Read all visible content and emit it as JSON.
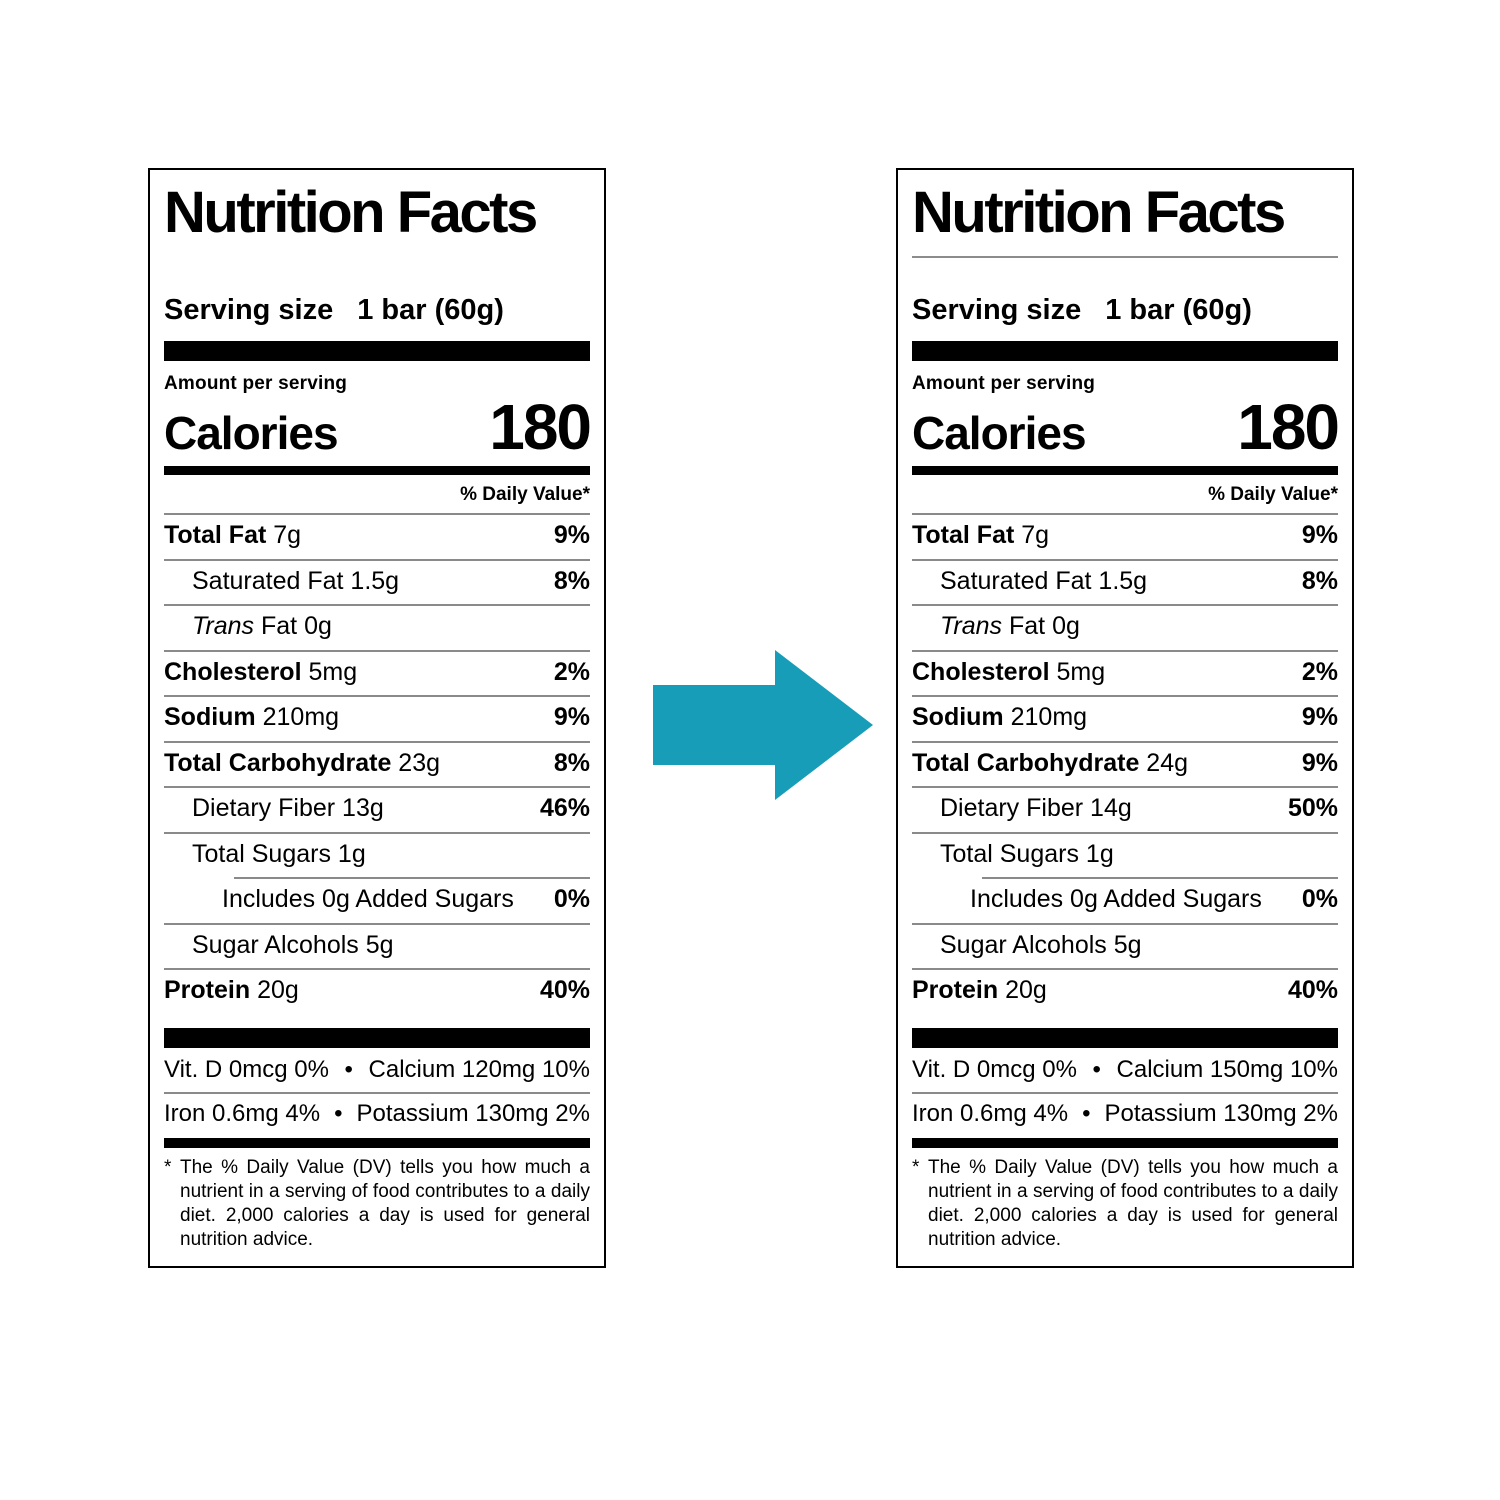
{
  "arrow": {
    "color": "#189db8"
  },
  "labels": [
    {
      "id": "before",
      "title": "Nutrition Facts",
      "title_rule": false,
      "serving_label": "Serving size",
      "serving_value": "1 bar (60g)",
      "amount_per_serving": "Amount per serving",
      "calories_label": "Calories",
      "calories_value": "180",
      "daily_value_header": "% Daily Value*",
      "rows": [
        {
          "bold": "Total Fat",
          "text": " 7g",
          "dv": "9%",
          "indent": 0
        },
        {
          "text": "Saturated Fat 1.5g",
          "dv": "8%",
          "indent": 1
        },
        {
          "italic": "Trans",
          "text": " Fat 0g",
          "indent": 1
        },
        {
          "bold": "Cholesterol",
          "text": " 5mg",
          "dv": "2%",
          "indent": 0
        },
        {
          "bold": "Sodium",
          "text": " 210mg",
          "dv": "9%",
          "indent": 0
        },
        {
          "bold": "Total Carbohydrate",
          "text": " 23g",
          "dv": "8%",
          "indent": 0
        },
        {
          "text": "Dietary Fiber 13g",
          "dv": "46%",
          "indent": 1
        },
        {
          "text": "Total Sugars 1g",
          "indent": 1
        },
        {
          "text": "Includes 0g Added Sugars",
          "dv": "0%",
          "indent": 2,
          "line_indent": true
        },
        {
          "text": "Sugar Alcohols 5g",
          "indent": 1
        },
        {
          "bold": "Protein",
          "text": " 20g",
          "dv": "40%",
          "indent": 0
        }
      ],
      "micro_separator": "•",
      "micros": [
        {
          "left": "Vit. D 0mcg 0%",
          "right": "Calcium 120mg 10%"
        },
        {
          "left": "Iron 0.6mg 4%",
          "right": "Potassium 130mg 2%"
        }
      ],
      "footnote_marker": "*",
      "footnote_text": "The % Daily Value (DV) tells you how much a nutrient in a serving of food contributes to a daily diet. 2,000 calories a day is used for general nutrition advice."
    },
    {
      "id": "after",
      "title": "Nutrition Facts",
      "title_rule": true,
      "serving_label": "Serving size",
      "serving_value": "1 bar (60g)",
      "amount_per_serving": "Amount per serving",
      "calories_label": "Calories",
      "calories_value": "180",
      "daily_value_header": "% Daily Value*",
      "rows": [
        {
          "bold": "Total Fat",
          "text": " 7g",
          "dv": "9%",
          "indent": 0
        },
        {
          "text": "Saturated Fat 1.5g",
          "dv": "8%",
          "indent": 1
        },
        {
          "italic": "Trans",
          "text": " Fat 0g",
          "indent": 1
        },
        {
          "bold": "Cholesterol",
          "text": " 5mg",
          "dv": "2%",
          "indent": 0
        },
        {
          "bold": "Sodium",
          "text": " 210mg",
          "dv": "9%",
          "indent": 0
        },
        {
          "bold": "Total Carbohydrate",
          "text": " 24g",
          "dv": "9%",
          "indent": 0
        },
        {
          "text": "Dietary Fiber 14g",
          "dv": "50%",
          "indent": 1
        },
        {
          "text": "Total Sugars 1g",
          "indent": 1
        },
        {
          "text": "Includes 0g Added Sugars",
          "dv": "0%",
          "indent": 2,
          "line_indent": true
        },
        {
          "text": "Sugar Alcohols 5g",
          "indent": 1
        },
        {
          "bold": "Protein",
          "text": " 20g",
          "dv": "40%",
          "indent": 0
        }
      ],
      "micro_separator": "•",
      "micros": [
        {
          "left": "Vit. D 0mcg 0%",
          "right": "Calcium 150mg 10%"
        },
        {
          "left": "Iron 0.6mg 4%",
          "right": "Potassium 130mg 2%"
        }
      ],
      "footnote_marker": "*",
      "footnote_text": "The % Daily Value (DV) tells you how much a nutrient in a serving of food contributes to a daily diet. 2,000 calories a day is used for general nutrition advice."
    }
  ]
}
